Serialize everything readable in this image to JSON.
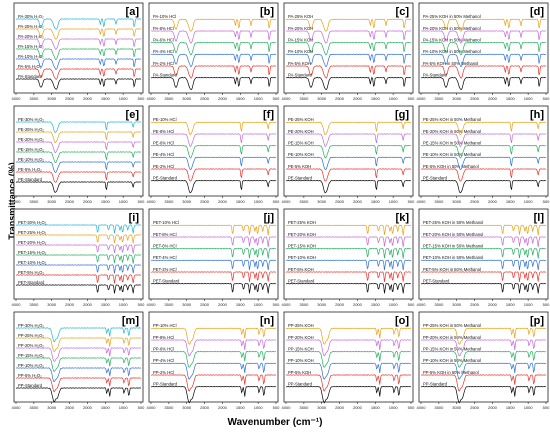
{
  "figure": {
    "y_axis_label": "Transmittance (%)",
    "x_axis_label": "Wavenumber (cm⁻¹)"
  },
  "palette": [
    "#000000",
    "#e8312a",
    "#2f6fd6",
    "#27ae60",
    "#c46ad9",
    "#e8a21a",
    "#22b5d8"
  ],
  "chart_data": [
    {
      "panel": "[a]",
      "type": "line",
      "polymer": "PA",
      "xlim": [
        4000,
        500
      ],
      "ticks": [
        "4000",
        "3500",
        "3000",
        "2500",
        "2000",
        "1500",
        "1000",
        "500"
      ],
      "series": [
        "PA-Standard",
        "PA-5% H₂O₂",
        "PA-10% H₂O₂",
        "PA-15% H₂O₂",
        "PA-20% H₂O₂",
        "PA-25% H₂O₂",
        "PA-30% H₂O₂"
      ],
      "peaks": [
        3300,
        2930,
        2860,
        1640,
        1540,
        1200,
        690
      ]
    },
    {
      "panel": "[b]",
      "type": "line",
      "polymer": "PA",
      "xlim": [
        4000,
        500
      ],
      "ticks": [
        "4000",
        "3500",
        "3000",
        "2500",
        "2000",
        "1500",
        "1000",
        "500"
      ],
      "series": [
        "PA-Standard",
        "PA-2% HCl",
        "PA-4% HCl",
        "PA-6% HCl",
        "PA-8% HCl",
        "PA-10% HCl"
      ],
      "peaks": [
        3300,
        2930,
        2860,
        1640,
        1540,
        1200,
        690
      ]
    },
    {
      "panel": "[c]",
      "type": "line",
      "polymer": "PA",
      "xlim": [
        4000,
        500
      ],
      "ticks": [
        "4000",
        "3500",
        "3000",
        "2500",
        "2000",
        "1500",
        "1000",
        "500"
      ],
      "series": [
        "PA-Standard",
        "PA-5% KOH",
        "PA-10% KOH",
        "PA-15% KOH",
        "PA-20% KOH",
        "PA-25% KOH"
      ],
      "peaks": [
        3300,
        2930,
        2860,
        1640,
        1540,
        1200,
        690
      ]
    },
    {
      "panel": "[d]",
      "type": "line",
      "polymer": "PA",
      "xlim": [
        4000,
        500
      ],
      "ticks": [
        "4000",
        "3500",
        "3000",
        "2500",
        "2000",
        "1500",
        "1000",
        "500"
      ],
      "series": [
        "PA-Standard",
        "PA-5% KOH in 50% Methanol",
        "PA-10% KOH in 50% Methanol",
        "PA-15% KOH in 50% Methanol",
        "PA-20% KOH in 50% Methanol",
        "PA-25% KOH in 50% Methanol"
      ],
      "peaks": [
        3300,
        2930,
        2860,
        1640,
        1540,
        1200,
        690
      ]
    },
    {
      "panel": "[e]",
      "type": "line",
      "polymer": "PE",
      "xlim": [
        4000,
        500
      ],
      "ticks": [
        "4000",
        "3500",
        "3000",
        "2500",
        "2000",
        "1500",
        "1000",
        "500"
      ],
      "series": [
        "PE-Standard",
        "PE-5% H₂O₂",
        "PE-10% H₂O₂",
        "PE-15% H₂O₂",
        "PE-20% H₂O₂",
        "PE-25% H₂O₂",
        "PE-30% H₂O₂"
      ],
      "peaks": [
        2915,
        2848,
        1470,
        720
      ]
    },
    {
      "panel": "[f]",
      "type": "line",
      "polymer": "PE",
      "xlim": [
        4000,
        500
      ],
      "ticks": [
        "4000",
        "3500",
        "3000",
        "2500",
        "2000",
        "1500",
        "1000",
        "500"
      ],
      "series": [
        "PE-Standard",
        "PE-2% HCl",
        "PE-4% HCl",
        "PE-6% HCl",
        "PE-8% HCl",
        "PE-10% HCl"
      ],
      "peaks": [
        2915,
        2848,
        1470,
        720
      ]
    },
    {
      "panel": "[g]",
      "type": "line",
      "polymer": "PE",
      "xlim": [
        4000,
        500
      ],
      "ticks": [
        "4000",
        "3500",
        "3000",
        "2500",
        "2000",
        "1500",
        "1000",
        "500"
      ],
      "series": [
        "PE-Standard",
        "PE-5% KOH",
        "PE-10% KOH",
        "PE-15% KOH",
        "PE-20% KOH",
        "PE-25% KOH"
      ],
      "peaks": [
        2915,
        2848,
        1470,
        720
      ]
    },
    {
      "panel": "[h]",
      "type": "line",
      "polymer": "PE",
      "xlim": [
        4000,
        500
      ],
      "ticks": [
        "4000",
        "3500",
        "3000",
        "2500",
        "2000",
        "1500",
        "1000",
        "500"
      ],
      "series": [
        "PE-Standard",
        "PE-5% KOH in 50% Methanol",
        "PE-10% KOH in 50% Methanol",
        "PE-15% KOH in 50% Methanol",
        "PE-20% KOH in 50% Methanol",
        "PE-25% KOH in 50% Methanol"
      ],
      "peaks": [
        2915,
        2848,
        1470,
        720
      ]
    },
    {
      "panel": "[i]",
      "type": "line",
      "polymer": "PET",
      "xlim": [
        4000,
        500
      ],
      "ticks": [
        "4000",
        "3500",
        "3000",
        "2500",
        "2000",
        "1500",
        "1000",
        "500"
      ],
      "series": [
        "PET-Standard",
        "PET-5% H₂O₂",
        "PET-10% H₂O₂",
        "PET-15% H₂O₂",
        "PET-20% H₂O₂",
        "PET-25% H₂O₂",
        "PET-30% H₂O₂"
      ],
      "peaks": [
        1715,
        1410,
        1240,
        1090,
        1015,
        870,
        720
      ]
    },
    {
      "panel": "[j]",
      "type": "line",
      "polymer": "PET",
      "xlim": [
        4000,
        500
      ],
      "ticks": [
        "4000",
        "3500",
        "3000",
        "2500",
        "2000",
        "1500",
        "1000",
        "500"
      ],
      "series": [
        "PET-Standard",
        "PET-2% HCl",
        "PET-4% HCl",
        "PET-6% HCl",
        "PET-8% HCl",
        "PET-10% HCl"
      ],
      "peaks": [
        1715,
        1410,
        1240,
        1090,
        1015,
        870,
        720
      ]
    },
    {
      "panel": "[k]",
      "type": "line",
      "polymer": "PET",
      "xlim": [
        4000,
        500
      ],
      "ticks": [
        "4000",
        "3500",
        "3000",
        "2500",
        "2000",
        "1500",
        "1000",
        "500"
      ],
      "series": [
        "PET-Standard",
        "PET-5% KOH",
        "PET-10% KOH",
        "PET-15% KOH",
        "PET-20% KOH",
        "PET-25% KOH"
      ],
      "peaks": [
        1715,
        1410,
        1240,
        1090,
        1015,
        870,
        720
      ]
    },
    {
      "panel": "[l]",
      "type": "line",
      "polymer": "PET",
      "xlim": [
        4000,
        500
      ],
      "ticks": [
        "4000",
        "3500",
        "3000",
        "2500",
        "2000",
        "1500",
        "1000",
        "500"
      ],
      "series": [
        "PET-Standard",
        "PET-5% KOH in 50% Methanol",
        "PET-10% KOH in 50% Methanol",
        "PET-15% KOH in 50% Methanol",
        "PET-20% KOH in 50% Methanol",
        "PET-25% KOH in 50% Methanol"
      ],
      "peaks": [
        1715,
        1410,
        1240,
        1090,
        1015,
        870,
        720
      ]
    },
    {
      "panel": "[m]",
      "type": "line",
      "polymer": "PP",
      "xlim": [
        4000,
        500
      ],
      "ticks": [
        "4000",
        "3500",
        "3000",
        "2500",
        "2000",
        "1500",
        "1000",
        "500"
      ],
      "series": [
        "PP-Standard",
        "PP-5% H₂O₂",
        "PP-10% H₂O₂",
        "PP-15% H₂O₂",
        "PP-20% H₂O₂",
        "PP-25% H₂O₂",
        "PP-30% H₂O₂"
      ],
      "peaks": [
        2950,
        2917,
        2838,
        1455,
        1376,
        973,
        841
      ]
    },
    {
      "panel": "[n]",
      "type": "line",
      "polymer": "PP",
      "xlim": [
        4000,
        500
      ],
      "ticks": [
        "4000",
        "3500",
        "3000",
        "2500",
        "2000",
        "1500",
        "1000",
        "500"
      ],
      "series": [
        "PP-Standard",
        "PP-2% HCl",
        "PP-4% HCl",
        "PP-6% HCl",
        "PP-8% HCl",
        "PP-10% HCl"
      ],
      "peaks": [
        2950,
        2917,
        2838,
        1455,
        1376,
        973,
        841
      ]
    },
    {
      "panel": "[o]",
      "type": "line",
      "polymer": "PP",
      "xlim": [
        4000,
        500
      ],
      "ticks": [
        "4000",
        "3500",
        "3000",
        "2500",
        "2000",
        "1500",
        "1000",
        "500"
      ],
      "series": [
        "PP-Standard",
        "PP-5% KOH",
        "PP-10% KOH",
        "PP-15% KOH",
        "PP-20% KOH",
        "PP-25% KOH"
      ],
      "peaks": [
        2950,
        2917,
        2838,
        1455,
        1376,
        973,
        841
      ]
    },
    {
      "panel": "[p]",
      "type": "line",
      "polymer": "PP",
      "xlim": [
        4000,
        500
      ],
      "ticks": [
        "4000",
        "3500",
        "3000",
        "2500",
        "2000",
        "1500",
        "1000",
        "500"
      ],
      "series": [
        "PP-Standard",
        "PP-5% KOH in 50% Methanol",
        "PP-10% KOH in 50% Methanol",
        "PP-15% KOH in 50% Methanol",
        "PP-20% KOH in 50% Methanol",
        "PP-25% KOH in 50% Methanol"
      ],
      "peaks": [
        2950,
        2917,
        2838,
        1455,
        1376,
        973,
        841
      ]
    }
  ]
}
